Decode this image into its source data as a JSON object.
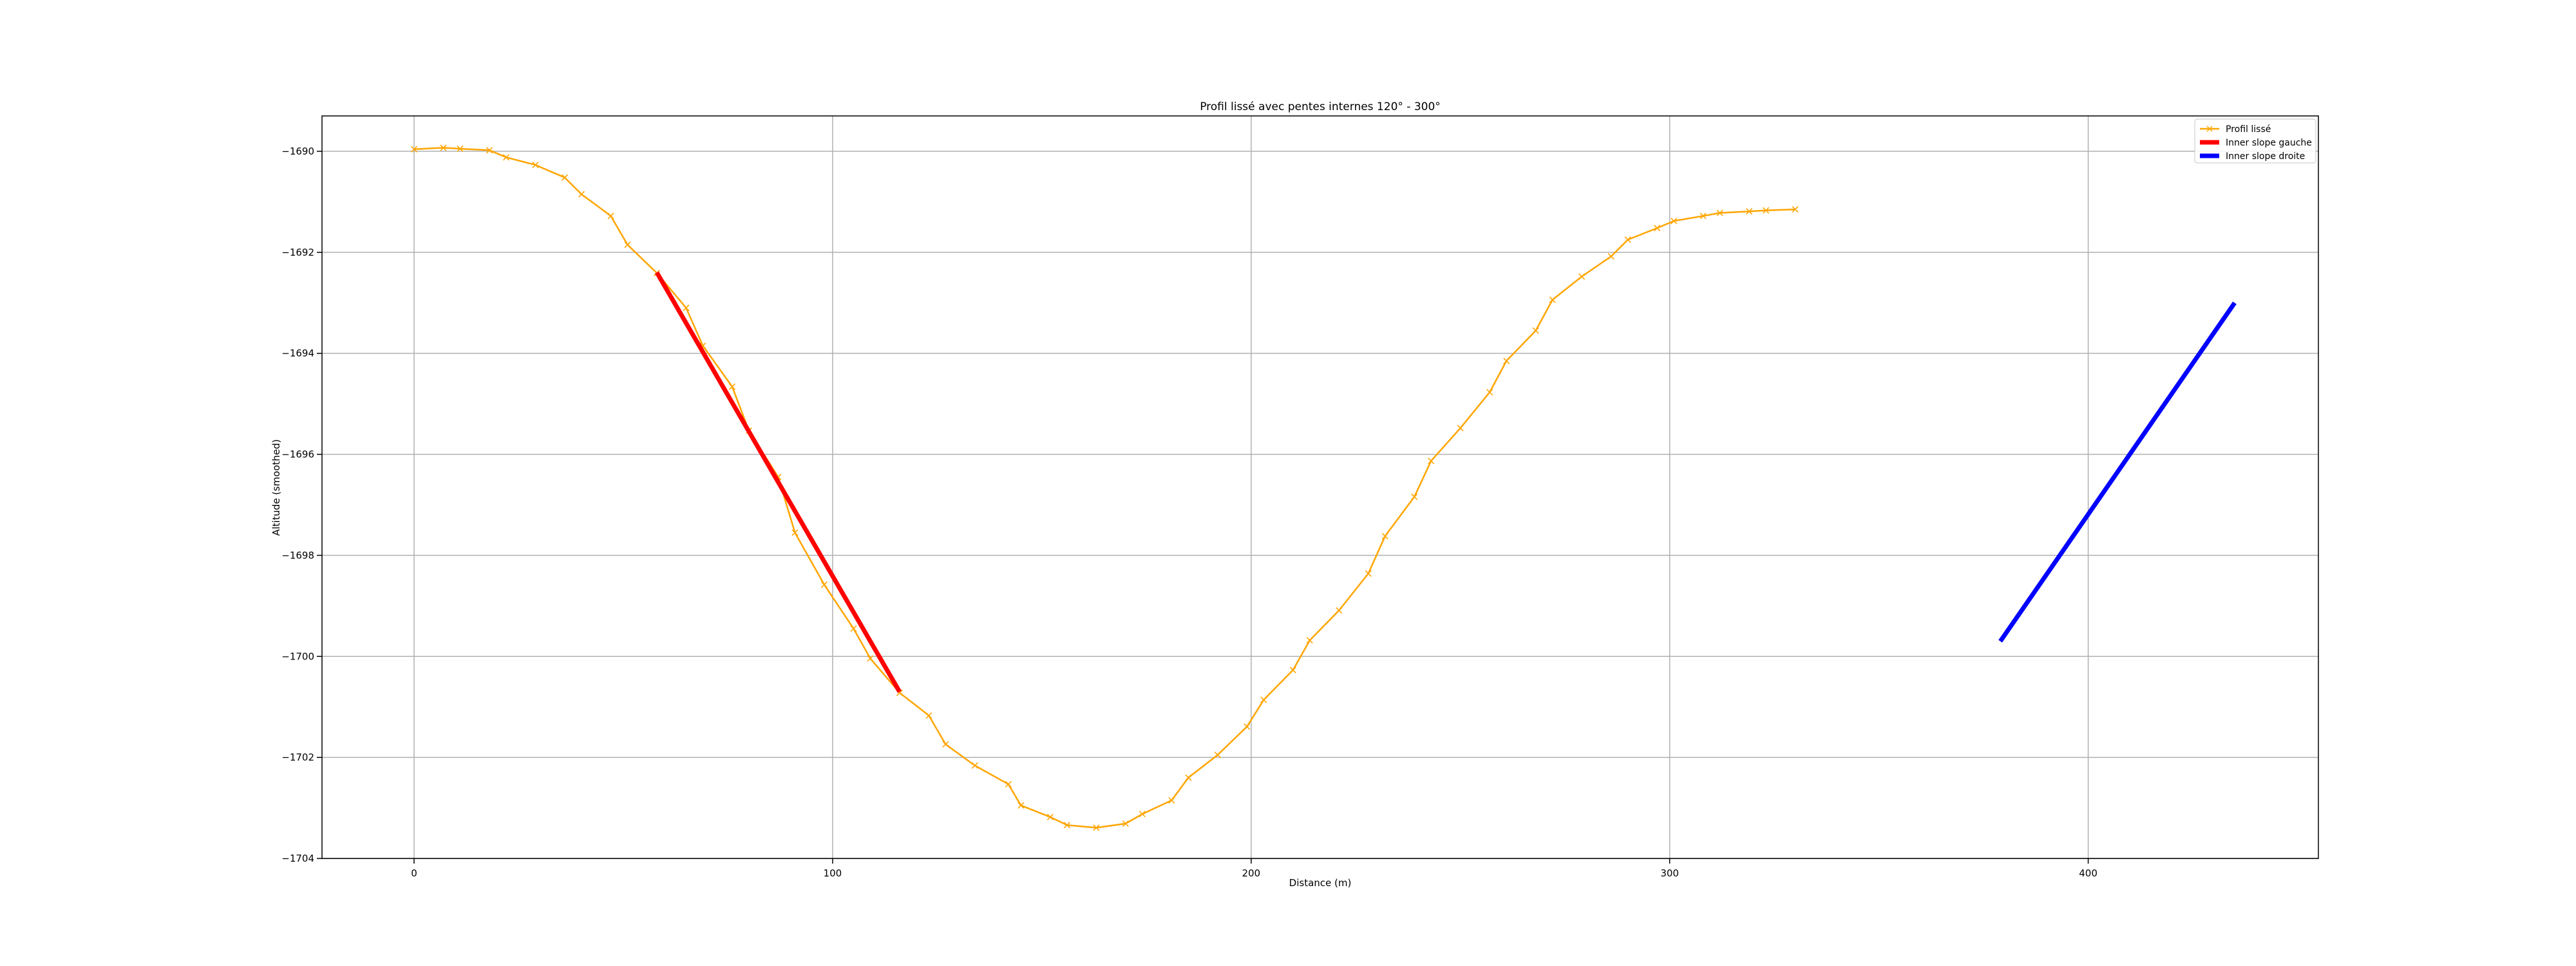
{
  "chart_data": {
    "type": "line",
    "title": "Profil lissé avec pentes internes 120° - 300°",
    "xlabel": "Distance (m)",
    "ylabel": "Altitude (smoothed)",
    "xlim": [
      -22,
      455
    ],
    "ylim": [
      -1704,
      -1689.3
    ],
    "xticks": [
      0,
      100,
      200,
      300,
      400
    ],
    "yticks": [
      -1704,
      -1702,
      -1700,
      -1698,
      -1696,
      -1694,
      -1692,
      -1690
    ],
    "xtick_labels": [
      "0",
      "100",
      "200",
      "300",
      "400"
    ],
    "ytick_labels": [
      "−1704",
      "−1702",
      "−1700",
      "−1698",
      "−1696",
      "−1694",
      "−1692",
      "−1690"
    ],
    "grid": true,
    "legend_position": "top-right",
    "series": [
      {
        "name": "Profil lissé",
        "color": "#ffa500",
        "marker": "x",
        "x": [
          0,
          7,
          11,
          18,
          22,
          29,
          36,
          40,
          47,
          51,
          58,
          65,
          69,
          76,
          80,
          87,
          91,
          98,
          105,
          109,
          116,
          123,
          127,
          134,
          142,
          145,
          152,
          156,
          163,
          170,
          174,
          181,
          185,
          192,
          199,
          203,
          210,
          214,
          221,
          228,
          232,
          239,
          243,
          250,
          257,
          261,
          268,
          272,
          279,
          286,
          290,
          297,
          301,
          308,
          312,
          319,
          323,
          330
        ],
        "y": [
          -1689.96,
          -1689.93,
          -1689.95,
          -1689.98,
          -1690.12,
          -1690.27,
          -1690.52,
          -1690.85,
          -1691.28,
          -1691.85,
          -1692.41,
          -1693.1,
          -1693.85,
          -1694.66,
          -1695.53,
          -1696.45,
          -1697.55,
          -1698.58,
          -1699.45,
          -1700.04,
          -1700.72,
          -1701.17,
          -1701.74,
          -1702.16,
          -1702.53,
          -1702.95,
          -1703.18,
          -1703.34,
          -1703.39,
          -1703.31,
          -1703.12,
          -1702.85,
          -1702.4,
          -1701.95,
          -1701.39,
          -1700.86,
          -1700.27,
          -1699.68,
          -1699.09,
          -1698.36,
          -1697.62,
          -1696.84,
          -1696.13,
          -1695.48,
          -1694.77,
          -1694.15,
          -1693.55,
          -1692.94,
          -1692.48,
          -1692.08,
          -1691.75,
          -1691.52,
          -1691.38,
          -1691.28,
          -1691.22,
          -1691.19,
          -1691.17,
          -1691.15
        ]
      },
      {
        "name": "Inner slope gauche",
        "color": "#ff0000",
        "x": [
          58,
          116
        ],
        "y": [
          -1692.4,
          -1700.7
        ]
      },
      {
        "name": "Inner slope droite",
        "color": "#0000ff",
        "x": [
          379,
          435
        ],
        "y": [
          -1699.7,
          -1693.0
        ]
      }
    ]
  }
}
